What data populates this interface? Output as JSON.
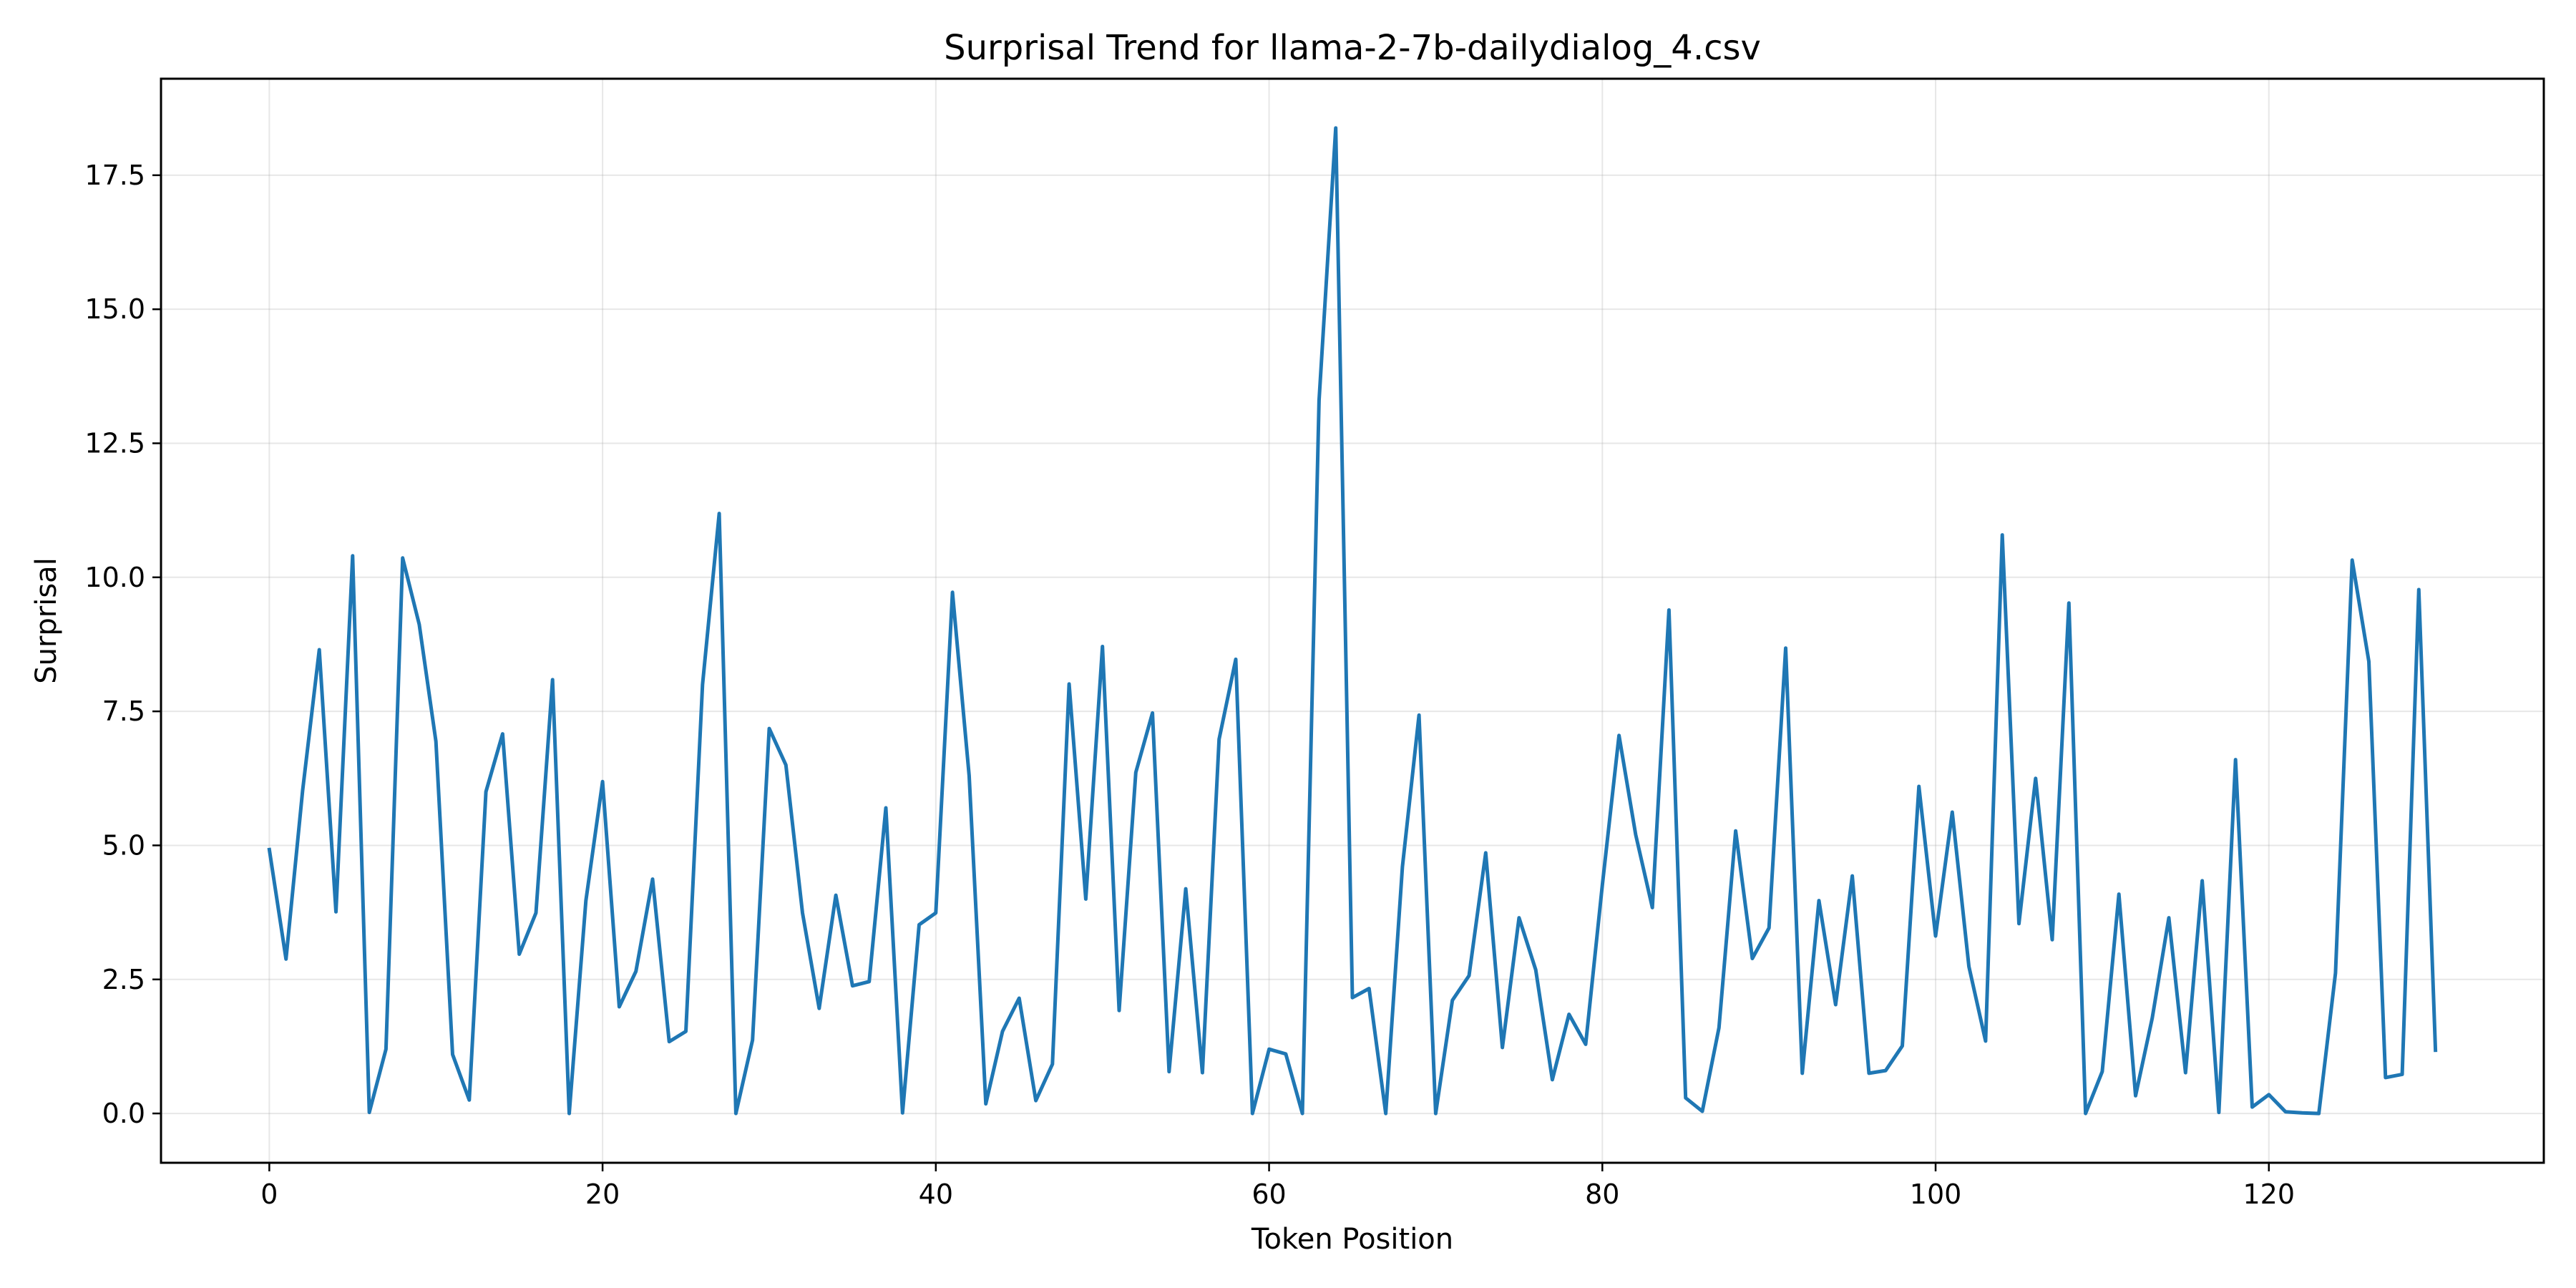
{
  "chart_data": {
    "type": "line",
    "title": "Surprisal Trend for llama-2-7b-dailydialog_4.csv",
    "xlabel": "Token Position",
    "ylabel": "Surprisal",
    "xlim": [
      -6.5,
      136.5
    ],
    "ylim": [
      -0.92,
      19.3
    ],
    "xticks": [
      0,
      20,
      40,
      60,
      80,
      100,
      120
    ],
    "yticks": [
      0.0,
      2.5,
      5.0,
      7.5,
      10.0,
      12.5,
      15.0,
      17.5
    ],
    "xtick_labels": [
      "0",
      "20",
      "40",
      "60",
      "80",
      "100",
      "120"
    ],
    "ytick_labels": [
      "0.0",
      "2.5",
      "5.0",
      "7.5",
      "10.0",
      "12.5",
      "15.0",
      "17.5"
    ],
    "grid": true,
    "series": [
      {
        "color": "#1f77b4",
        "x": [
          0,
          1,
          2,
          3,
          4,
          5,
          6,
          7,
          8,
          9,
          10,
          11,
          12,
          13,
          14,
          15,
          16,
          17,
          18,
          19,
          20,
          21,
          22,
          23,
          24,
          25,
          26,
          27,
          28,
          29,
          30,
          31,
          32,
          33,
          34,
          35,
          36,
          37,
          38,
          39,
          40,
          41,
          42,
          43,
          44,
          45,
          46,
          47,
          48,
          49,
          50,
          51,
          52,
          53,
          54,
          55,
          56,
          57,
          58,
          59,
          60,
          61,
          62,
          63,
          64,
          65,
          66,
          67,
          68,
          69,
          70,
          71,
          72,
          73,
          74,
          75,
          76,
          77,
          78,
          79,
          80,
          81,
          82,
          83,
          84,
          85,
          86,
          87,
          88,
          89,
          90,
          91,
          92,
          93,
          94,
          95,
          96,
          97,
          98,
          99,
          100,
          101,
          102,
          103,
          104,
          105,
          106,
          107,
          108,
          109,
          110,
          111,
          112,
          113,
          114,
          115,
          116,
          117,
          118,
          119,
          120,
          121,
          122,
          123,
          124,
          125,
          126,
          127,
          128,
          129,
          130
        ],
        "values": [
          4.92,
          2.88,
          6.02,
          8.65,
          3.76,
          10.4,
          0.02,
          1.2,
          10.36,
          9.12,
          6.94,
          1.1,
          0.25,
          6.0,
          7.08,
          2.97,
          3.74,
          8.09,
          0.0,
          3.97,
          6.19,
          1.99,
          2.65,
          4.37,
          1.34,
          1.53,
          8.0,
          11.19,
          0.0,
          1.37,
          7.18,
          6.5,
          3.74,
          1.96,
          4.07,
          2.38,
          2.46,
          5.7,
          0.01,
          3.52,
          3.74,
          9.72,
          6.3,
          0.18,
          1.53,
          2.15,
          0.24,
          0.92,
          8.01,
          4.0,
          8.71,
          1.92,
          6.36,
          7.47,
          0.78,
          4.19,
          0.76,
          6.98,
          8.47,
          0.0,
          1.2,
          1.11,
          0.0,
          13.3,
          18.38,
          2.16,
          2.33,
          0.0,
          4.6,
          7.43,
          0.0,
          2.11,
          2.57,
          4.86,
          1.23,
          3.65,
          2.68,
          0.63,
          1.85,
          1.29,
          4.26,
          7.05,
          5.2,
          3.84,
          9.39,
          0.29,
          0.04,
          1.6,
          5.27,
          2.89,
          3.46,
          8.68,
          0.75,
          3.97,
          2.03,
          4.43,
          0.75,
          0.8,
          1.26,
          6.1,
          3.31,
          5.62,
          2.74,
          1.35,
          10.79,
          3.54,
          6.25,
          3.24,
          9.52,
          0.0,
          0.78,
          4.09,
          0.33,
          1.78,
          3.65,
          0.76,
          4.34,
          0.02,
          6.6,
          0.12,
          0.35,
          0.03,
          0.01,
          0.0,
          2.62,
          10.32,
          8.43,
          0.67,
          0.73,
          9.77,
          1.18
        ]
      }
    ]
  }
}
